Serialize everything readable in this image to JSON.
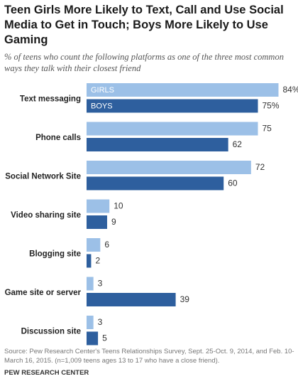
{
  "title": "Teen Girls More Likely to Text, Call and Use Social Media to Get in Touch; Boys More Likely to Use Gaming",
  "subtitle": "% of teens who count the following platforms as one of the three most common ways they talk with their closest friend",
  "source": "Source: Pew Research Center's Teens Relationships Survey, Sept. 25-Oct. 9, 2014, and Feb. 10-March 16, 2015. (n=1,009 teens ages 13 to 17 who have a close friend).",
  "organization": "PEW RESEARCH CENTER",
  "colors": {
    "girls": "#9cc0e7",
    "boys": "#2e5f9e",
    "inside_label": "#ffffff"
  },
  "chart_data": {
    "type": "bar",
    "orientation": "horizontal",
    "categories": [
      "Text messaging",
      "Phone calls",
      "Social Network Site",
      "Video sharing site",
      "Blogging site",
      "Game site or server",
      "Discussion site"
    ],
    "series": [
      {
        "name": "GIRLS",
        "values": [
          84,
          75,
          72,
          10,
          6,
          3,
          3
        ],
        "value_labels": [
          "84%",
          "75",
          "72",
          "10",
          "6",
          "3",
          "3"
        ]
      },
      {
        "name": "BOYS",
        "values": [
          75,
          62,
          60,
          9,
          2,
          39,
          5
        ],
        "value_labels": [
          "75%",
          "62",
          "60",
          "9",
          "2",
          "39",
          "5"
        ]
      }
    ],
    "xlim": [
      0,
      100
    ],
    "grid": false,
    "legend": "inside first bars"
  }
}
